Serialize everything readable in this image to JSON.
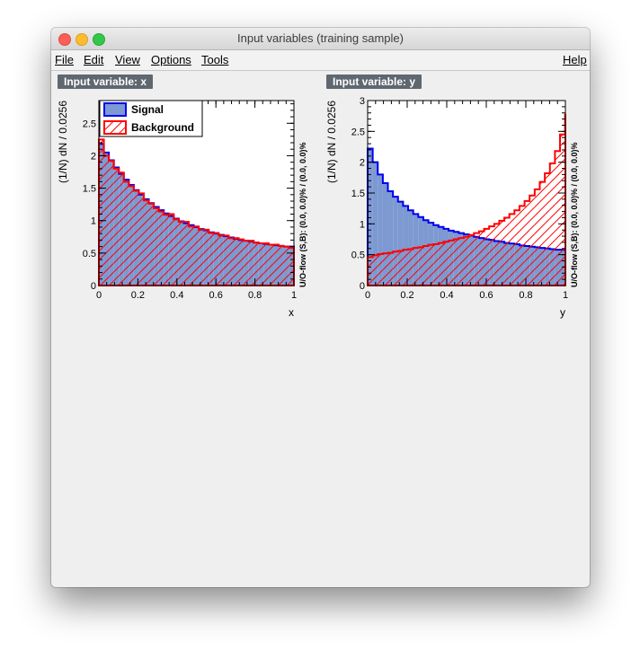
{
  "window": {
    "title": "Input variables (training sample)"
  },
  "menu": {
    "file": "File",
    "edit": "Edit",
    "view": "View",
    "options": "Options",
    "tools": "Tools",
    "help": "Help"
  },
  "colors": {
    "signal_fill": "#7d99d1",
    "signal_line": "#0000ee",
    "background_line": "#ff0000"
  },
  "chart_data": [
    {
      "type": "histogram",
      "panel_label": "Input variable: x",
      "xlabel": "x",
      "ylabel": "(1/N) dN / 0.0256",
      "side_label": "U/O-flow (S,B): (0.0, 0.0)% / (0.0, 0.0)%",
      "xlim": [
        0,
        1
      ],
      "ylim": [
        0,
        2.85
      ],
      "xticks": [
        "0",
        "0.2",
        "0.4",
        "0.6",
        "0.8",
        "1"
      ],
      "yticks": [
        "0",
        "0.5",
        "1",
        "1.5",
        "2",
        "2.5"
      ],
      "legend": {
        "position": "top-left",
        "entries": [
          "Signal",
          "Background"
        ]
      },
      "bin_width": 0.0256,
      "series": [
        {
          "name": "Signal",
          "values": [
            2.18,
            2.05,
            1.93,
            1.82,
            1.72,
            1.63,
            1.55,
            1.47,
            1.4,
            1.33,
            1.27,
            1.21,
            1.16,
            1.11,
            1.07,
            1.03,
            0.99,
            0.96,
            0.93,
            0.9,
            0.87,
            0.85,
            0.82,
            0.8,
            0.78,
            0.76,
            0.74,
            0.72,
            0.7,
            0.69,
            0.68,
            0.66,
            0.65,
            0.64,
            0.63,
            0.62,
            0.61,
            0.6,
            0.6,
            0.6
          ]
        },
        {
          "name": "Background",
          "values": [
            2.25,
            2.0,
            1.92,
            1.8,
            1.74,
            1.6,
            1.53,
            1.46,
            1.42,
            1.31,
            1.26,
            1.19,
            1.14,
            1.09,
            1.1,
            1.02,
            0.98,
            0.98,
            0.91,
            0.91,
            0.86,
            0.86,
            0.81,
            0.81,
            0.77,
            0.77,
            0.73,
            0.73,
            0.71,
            0.69,
            0.69,
            0.66,
            0.65,
            0.65,
            0.63,
            0.63,
            0.61,
            0.6,
            0.58,
            0.58
          ]
        }
      ]
    },
    {
      "type": "histogram",
      "panel_label": "Input variable: y",
      "xlabel": "y",
      "ylabel": "(1/N) dN / 0.0256",
      "side_label": "U/O-flow (S,B): (0.0, 0.0)% / (0.0, 0.0)%",
      "xlim": [
        0,
        1
      ],
      "ylim": [
        0,
        3
      ],
      "xticks": [
        "0",
        "0.2",
        "0.4",
        "0.6",
        "0.8",
        "1"
      ],
      "yticks": [
        "0",
        "0.5",
        "1",
        "1.5",
        "2",
        "2.5",
        "3"
      ],
      "bin_width": 0.0256,
      "series": [
        {
          "name": "Signal",
          "values": [
            2.22,
            2.0,
            1.8,
            1.66,
            1.53,
            1.44,
            1.36,
            1.29,
            1.22,
            1.16,
            1.11,
            1.06,
            1.02,
            0.98,
            0.95,
            0.92,
            0.89,
            0.87,
            0.85,
            0.83,
            0.81,
            0.79,
            0.77,
            0.75,
            0.74,
            0.72,
            0.71,
            0.69,
            0.68,
            0.67,
            0.65,
            0.64,
            0.63,
            0.62,
            0.61,
            0.6,
            0.59,
            0.58,
            0.58,
            0.57
          ]
        },
        {
          "name": "Background",
          "values": [
            0.46,
            0.49,
            0.51,
            0.52,
            0.53,
            0.55,
            0.56,
            0.58,
            0.59,
            0.61,
            0.62,
            0.64,
            0.66,
            0.67,
            0.69,
            0.71,
            0.73,
            0.75,
            0.77,
            0.79,
            0.82,
            0.85,
            0.88,
            0.92,
            0.96,
            1.0,
            1.05,
            1.1,
            1.16,
            1.22,
            1.29,
            1.37,
            1.46,
            1.56,
            1.68,
            1.82,
            1.98,
            2.18,
            2.45,
            2.77
          ]
        }
      ]
    }
  ]
}
